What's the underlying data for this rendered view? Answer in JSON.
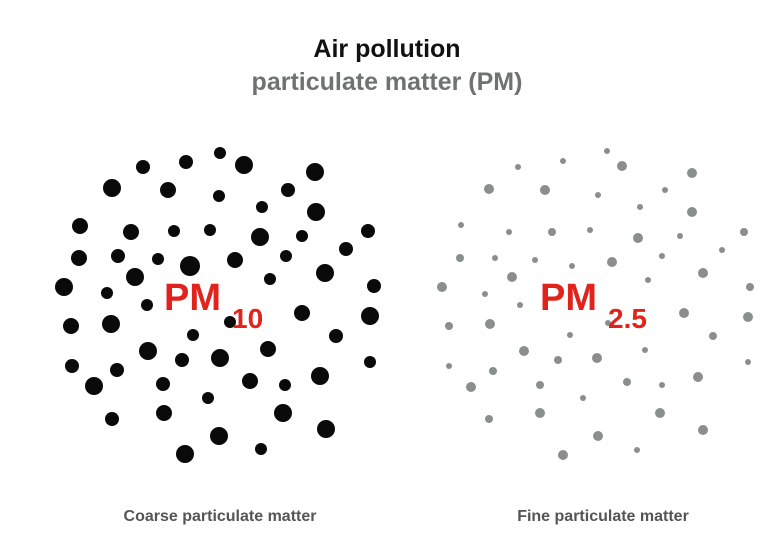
{
  "header": {
    "title": "Air pollution",
    "subtitle": "particulate matter (PM)"
  },
  "panels": [
    {
      "label": "PM",
      "subscript": "10",
      "caption": "Coarse particulate matter"
    },
    {
      "label": "PM",
      "subscript": "2.5",
      "caption": "Fine particulate matter"
    }
  ]
}
